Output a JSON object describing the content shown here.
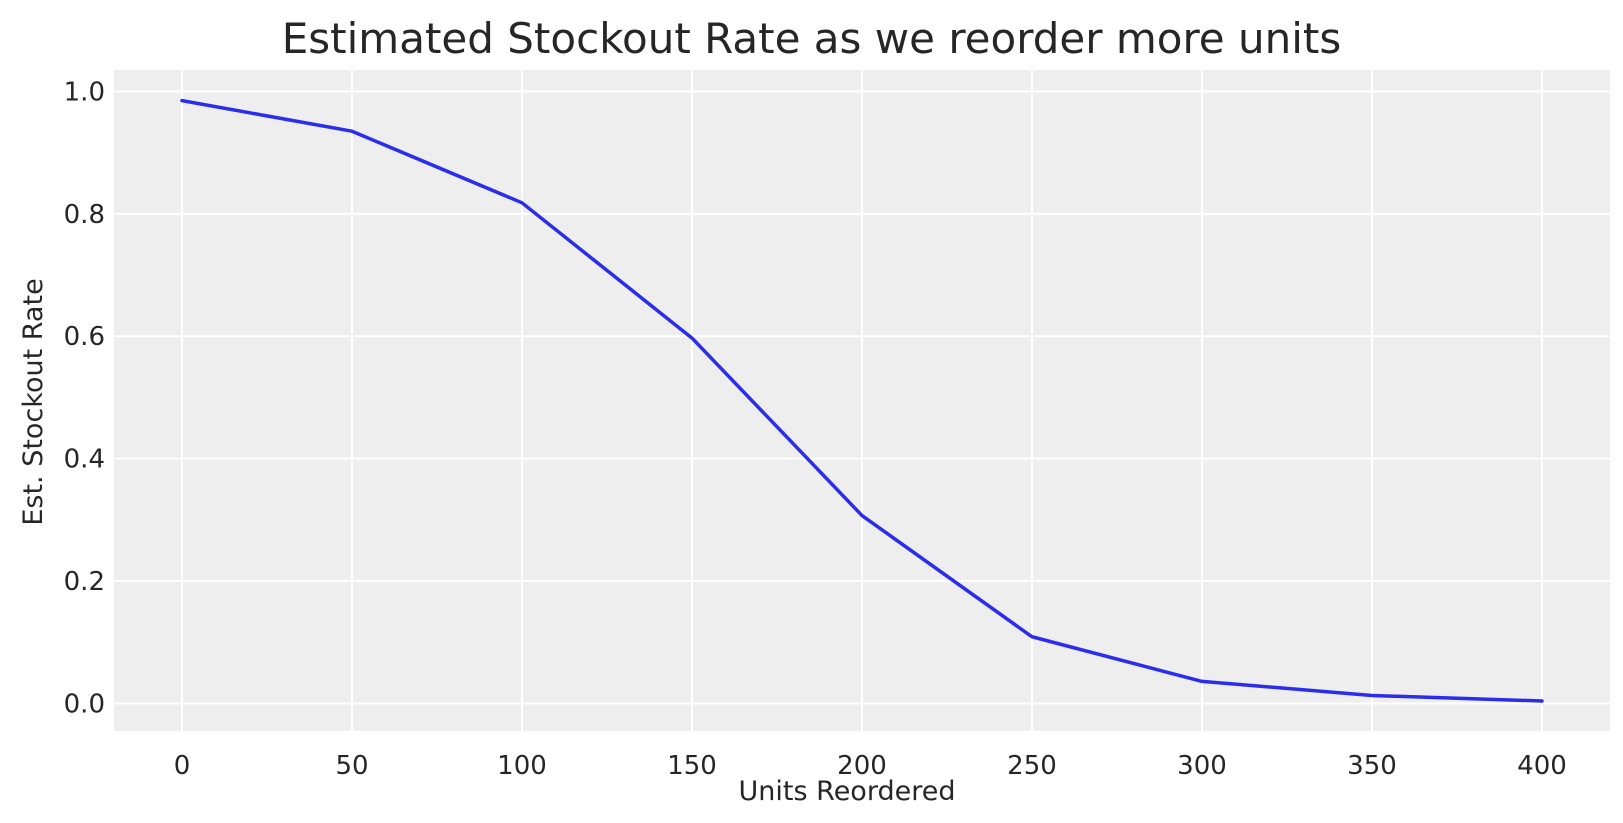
{
  "chart_data": {
    "type": "line",
    "title": "Estimated Stockout Rate as we reorder more units",
    "xlabel": "Units Reordered",
    "ylabel": "Est. Stockout Rate",
    "x": [
      0,
      50,
      100,
      150,
      200,
      250,
      300,
      350,
      400
    ],
    "series": [
      {
        "values": [
          0.985,
          0.935,
          0.818,
          0.597,
          0.307,
          0.109,
          0.036,
          0.013,
          0.004
        ]
      }
    ],
    "xlim": [
      -20,
      420
    ],
    "ylim": [
      -0.045,
      1.035
    ],
    "xticks": [
      0,
      50,
      100,
      150,
      200,
      250,
      300,
      350,
      400
    ],
    "xtick_labels": [
      "0",
      "50",
      "100",
      "150",
      "200",
      "250",
      "300",
      "350",
      "400"
    ],
    "yticks": [
      0.0,
      0.2,
      0.4,
      0.6,
      0.8,
      1.0
    ],
    "ytick_labels": [
      "0.0",
      "0.2",
      "0.4",
      "0.6",
      "0.8",
      "1.0"
    ],
    "grid": true,
    "colors": {
      "line": "#2a2eec",
      "background": "#eeeeee",
      "grid": "#ffffff"
    }
  }
}
